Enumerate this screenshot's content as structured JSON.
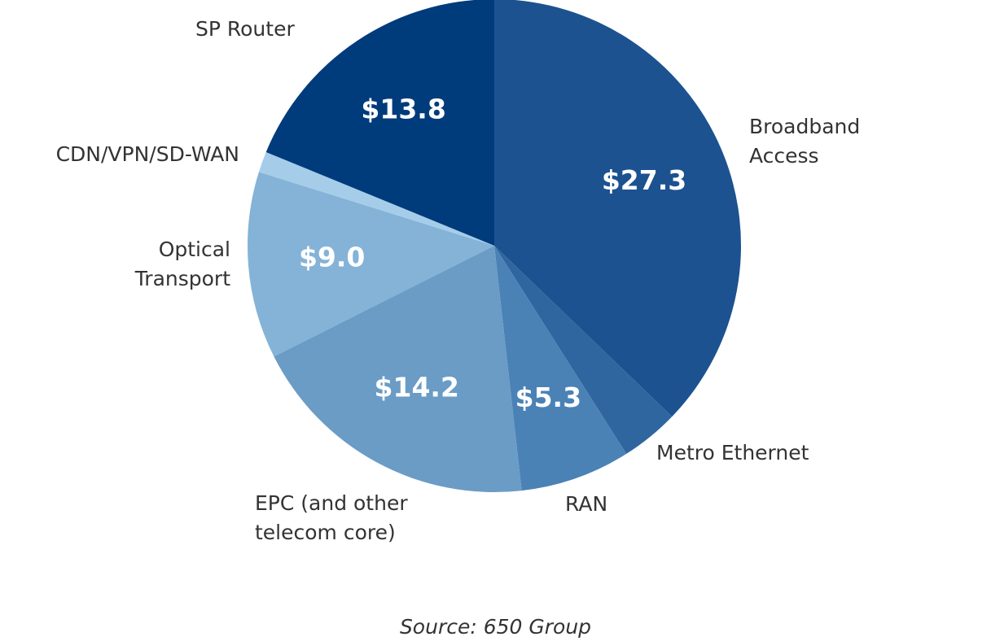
{
  "chart_data": {
    "type": "pie",
    "categories": [
      "Broadband Access",
      "Metro Ethernet",
      "RAN",
      "EPC (and other telecom core)",
      "Optical Transport",
      "CDN/VPN/SD-WAN",
      "SP Router"
    ],
    "values": [
      27.3,
      2.8,
      5.3,
      14.2,
      9.0,
      1.0,
      13.8
    ],
    "value_labels": [
      "$27.3",
      null,
      "$5.3",
      "$14.2",
      "$9.0",
      null,
      "$13.8"
    ],
    "colors": [
      "#1c5290",
      "#2f66a0",
      "#4a82b6",
      "#6a9cc6",
      "#84b3d7",
      "#a5cdea",
      "#003b7c"
    ],
    "source": "Source: 650 Group"
  }
}
